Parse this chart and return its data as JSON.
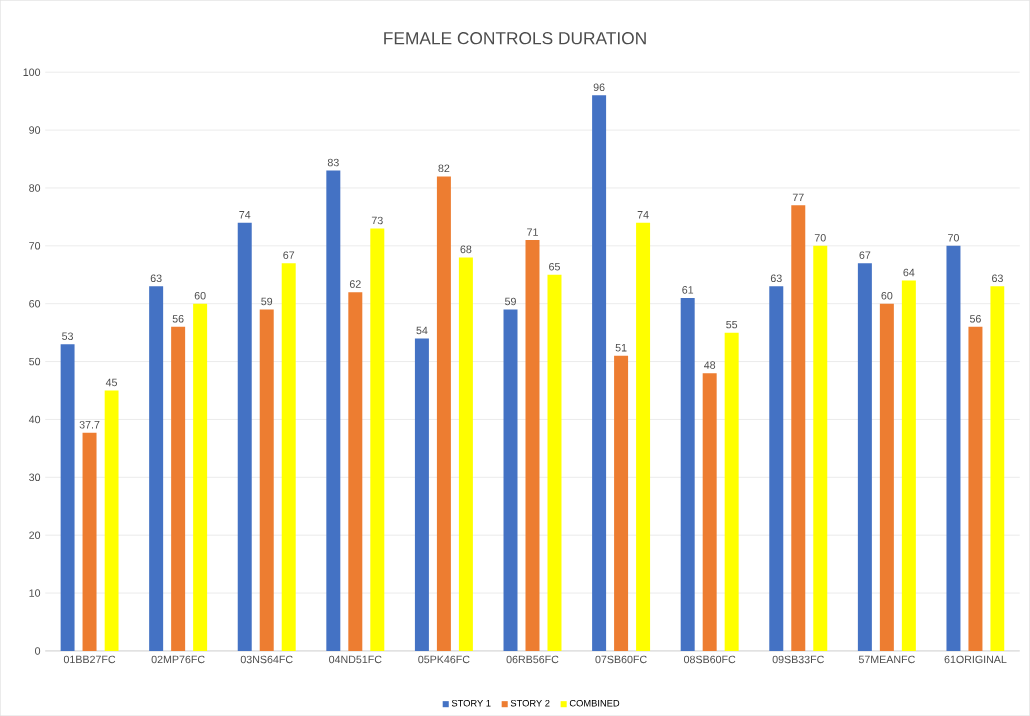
{
  "chart_data": {
    "type": "bar",
    "title": "FEMALE CONTROLS DURATION",
    "categories": [
      "01BB27FC",
      "02MP76FC",
      "03NS64FC",
      "04ND51FC",
      "05PK46FC",
      "06RB56FC",
      "07SB60FC",
      "08SB60FC",
      "09SB33FC",
      "57MEANFC",
      "61ORIGINAL"
    ],
    "series": [
      {
        "name": "STORY 1",
        "color": "#4472c4",
        "values": [
          53,
          63,
          74,
          83,
          54,
          59,
          96,
          61,
          63,
          67,
          70
        ]
      },
      {
        "name": "STORY 2",
        "color": "#ed7d31",
        "values": [
          37.7,
          56,
          59,
          62,
          82,
          71,
          51,
          48,
          77,
          60,
          56
        ]
      },
      {
        "name": "COMBINED",
        "color": "#ffff00",
        "values": [
          45,
          60,
          67,
          73,
          68,
          65,
          74,
          55,
          70,
          64,
          63
        ]
      }
    ],
    "ylim": [
      0,
      100
    ],
    "yticks": [
      0,
      10,
      20,
      30,
      40,
      50,
      60,
      70,
      80,
      90,
      100
    ],
    "grid": "y",
    "legend": "bottom",
    "data_labels": true
  }
}
